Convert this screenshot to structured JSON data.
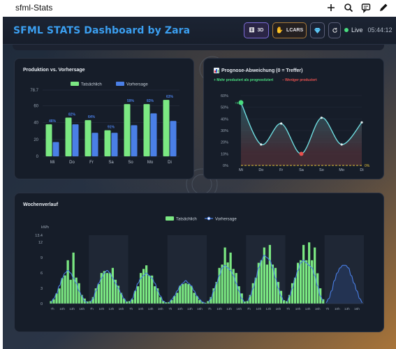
{
  "app": {
    "title": "sfml-Stats",
    "top_icons": [
      "plus-icon",
      "search-icon",
      "comment-icon",
      "pencil-icon"
    ]
  },
  "header": {
    "title": "SFML STATS Dashboard by Zara",
    "btn_3d": "3D",
    "btn_lcars": "LCARS",
    "live_label": "Live",
    "time": "05:44:12"
  },
  "colors": {
    "actual": "#7be882",
    "forecast": "#4a7fe6",
    "deviation_line": "#6fdde0",
    "positive_text": "#4ade80",
    "negative_text": "#e8514f"
  },
  "production_card": {
    "title": "Produktion vs. Vorhersage"
  },
  "deviation_card": {
    "title": "Prognose-Abweichung (0 = Treffer)",
    "legend_positive": "+ Mehr produziert als prognostiziert",
    "legend_negative": "– Weniger produziert"
  },
  "weekly_card": {
    "title": "Wochenverlauf"
  },
  "chart_data": [
    {
      "type": "bar",
      "title": "Produktion vs. Vorhersage",
      "categories": [
        "Mi",
        "Do",
        "Fr",
        "Sa",
        "So",
        "Mo",
        "Di"
      ],
      "series": [
        {
          "name": "Tatsächlich",
          "values": [
            38,
            46,
            43,
            31,
            62,
            62,
            67
          ]
        },
        {
          "name": "Vorhersage",
          "values": [
            17,
            38,
            28,
            28,
            37,
            51,
            42
          ]
        }
      ],
      "data_labels": [
        "46%",
        "82%",
        "64%",
        "91%",
        "59%",
        "83%",
        "63%"
      ],
      "yticks": [
        "0",
        "20",
        "40",
        "60",
        "78.7"
      ],
      "ylim": [
        0,
        78.7
      ]
    },
    {
      "type": "line",
      "title": "Prognose-Abweichung (0 = Treffer)",
      "categories": [
        "Mi",
        "Do",
        "Fr",
        "Sa",
        "So",
        "Mo",
        "Di"
      ],
      "values": [
        54,
        18,
        36,
        10,
        41,
        18,
        37
      ],
      "point_labels": [
        "+54%",
        "",
        "",
        "",
        "",
        "",
        ""
      ],
      "yticks": [
        "0%",
        "10%",
        "20%",
        "30%",
        "40%",
        "50%",
        "60%"
      ],
      "zero_label": "0%",
      "ylim": [
        0,
        60
      ]
    },
    {
      "type": "bar",
      "title": "Wochenverlauf",
      "ylabel": "kWh",
      "yticks": [
        "0",
        "3",
        "6",
        "9",
        "12",
        "13.4"
      ],
      "ylim": [
        0,
        13.4
      ],
      "xtick_labels": [
        "7h",
        "10h",
        "13h",
        "16h"
      ],
      "series": [
        {
          "name": "Tatsächlich",
          "days": [
            [
              0.5,
              1,
              2,
              3.5,
              5,
              6.5,
              8.5,
              5.5,
              10,
              6,
              4,
              2,
              1,
              0.5
            ],
            [
              0.5,
              1.5,
              3,
              4.5,
              6,
              7.5,
              6,
              7,
              7,
              5.5,
              3.5,
              2.5,
              1,
              0.5
            ],
            [
              0.5,
              1,
              2.5,
              4,
              6,
              8,
              7.5,
              6.5,
              5.5,
              4,
              3,
              1.5,
              0.5,
              0.3
            ],
            [
              0.3,
              0.8,
              1.5,
              2.5,
              3.5,
              4.5,
              4,
              4.5,
              3.5,
              2.5,
              1.5,
              0.8,
              0.3,
              0.2
            ],
            [
              0.5,
              1.5,
              3,
              5,
              7,
              9,
              11,
              9.5,
              10,
              8,
              6,
              4,
              2,
              0.5
            ],
            [
              0.5,
              2,
              4,
              6,
              8,
              10,
              11,
              9,
              11.5,
              9,
              7,
              5,
              2.5,
              0.8
            ],
            [
              0.5,
              2,
              4,
              6,
              8,
              10,
              11.5,
              10,
              12,
              10,
              11,
              7,
              3,
              1
            ]
          ]
        },
        {
          "name": "Vorhersage",
          "days": [
            [
              0.3,
              1,
              2,
              3.5,
              5,
              6,
              6.5,
              6,
              5,
              4,
              2.5,
              1.5,
              0.5,
              0.2
            ],
            [
              0.3,
              1,
              2.5,
              4,
              5,
              6,
              6.5,
              6,
              5,
              4,
              3,
              2,
              1,
              0.3
            ],
            [
              0.3,
              1,
              2.5,
              4,
              5,
              5.5,
              6,
              5.5,
              5,
              4,
              2.5,
              1.5,
              0.5,
              0.2
            ],
            [
              0.2,
              0.8,
              1.5,
              2.5,
              3.5,
              4,
              4.5,
              4,
              3.5,
              2.5,
              1.5,
              0.8,
              0.3,
              0.1
            ],
            [
              0.3,
              1,
              2.5,
              4,
              5.5,
              7,
              7.5,
              7,
              6.5,
              5.5,
              4,
              2.5,
              1,
              0.3
            ],
            [
              0.5,
              1.5,
              3,
              5,
              7,
              8.5,
              9.5,
              9,
              8.5,
              7,
              5,
              3,
              1.5,
              0.5
            ],
            [
              0.3,
              1.5,
              3,
              5,
              6.5,
              8,
              8.5,
              8,
              7.5,
              7,
              5.5,
              3.5,
              1.5,
              0.5
            ],
            [
              0.2,
              1,
              2.5,
              4.5,
              6,
              7,
              7.5,
              7.5,
              7,
              5.5,
              4,
              2.5,
              1,
              0.2
            ]
          ]
        }
      ]
    }
  ]
}
